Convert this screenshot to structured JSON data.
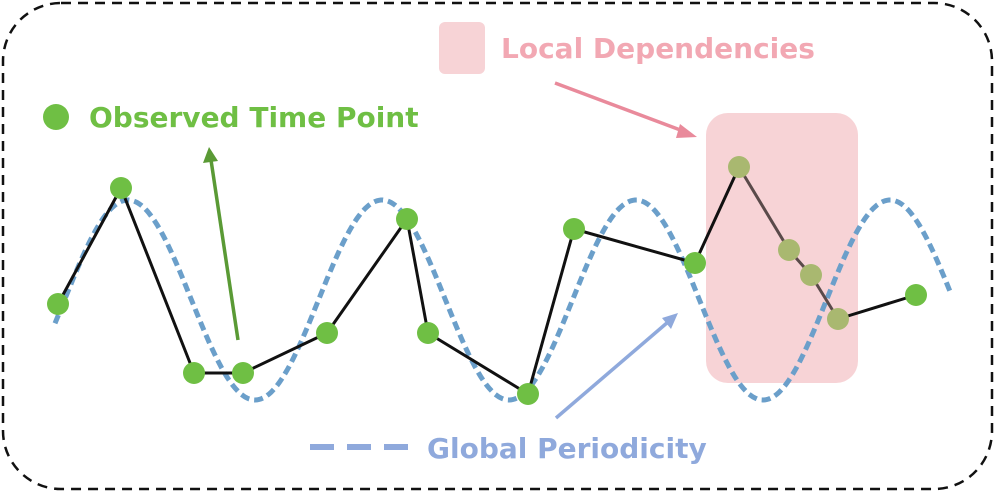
{
  "labels": {
    "observed": "Observed Time Point",
    "local": "Local Dependencies",
    "global": "Global Periodicity"
  },
  "colors": {
    "point": "#6fbf44",
    "point_faded": "#a9b870",
    "line": "#111111",
    "wave": "#6b9fca",
    "local_box": "#f7d3d6",
    "local_text": "#f2a8b3",
    "local_arrow": "#e98a9b",
    "global_text": "#8fa9dc",
    "observed_text": "#6fbf44",
    "observed_arrow": "#5a9a35",
    "border": "#111111"
  }
}
